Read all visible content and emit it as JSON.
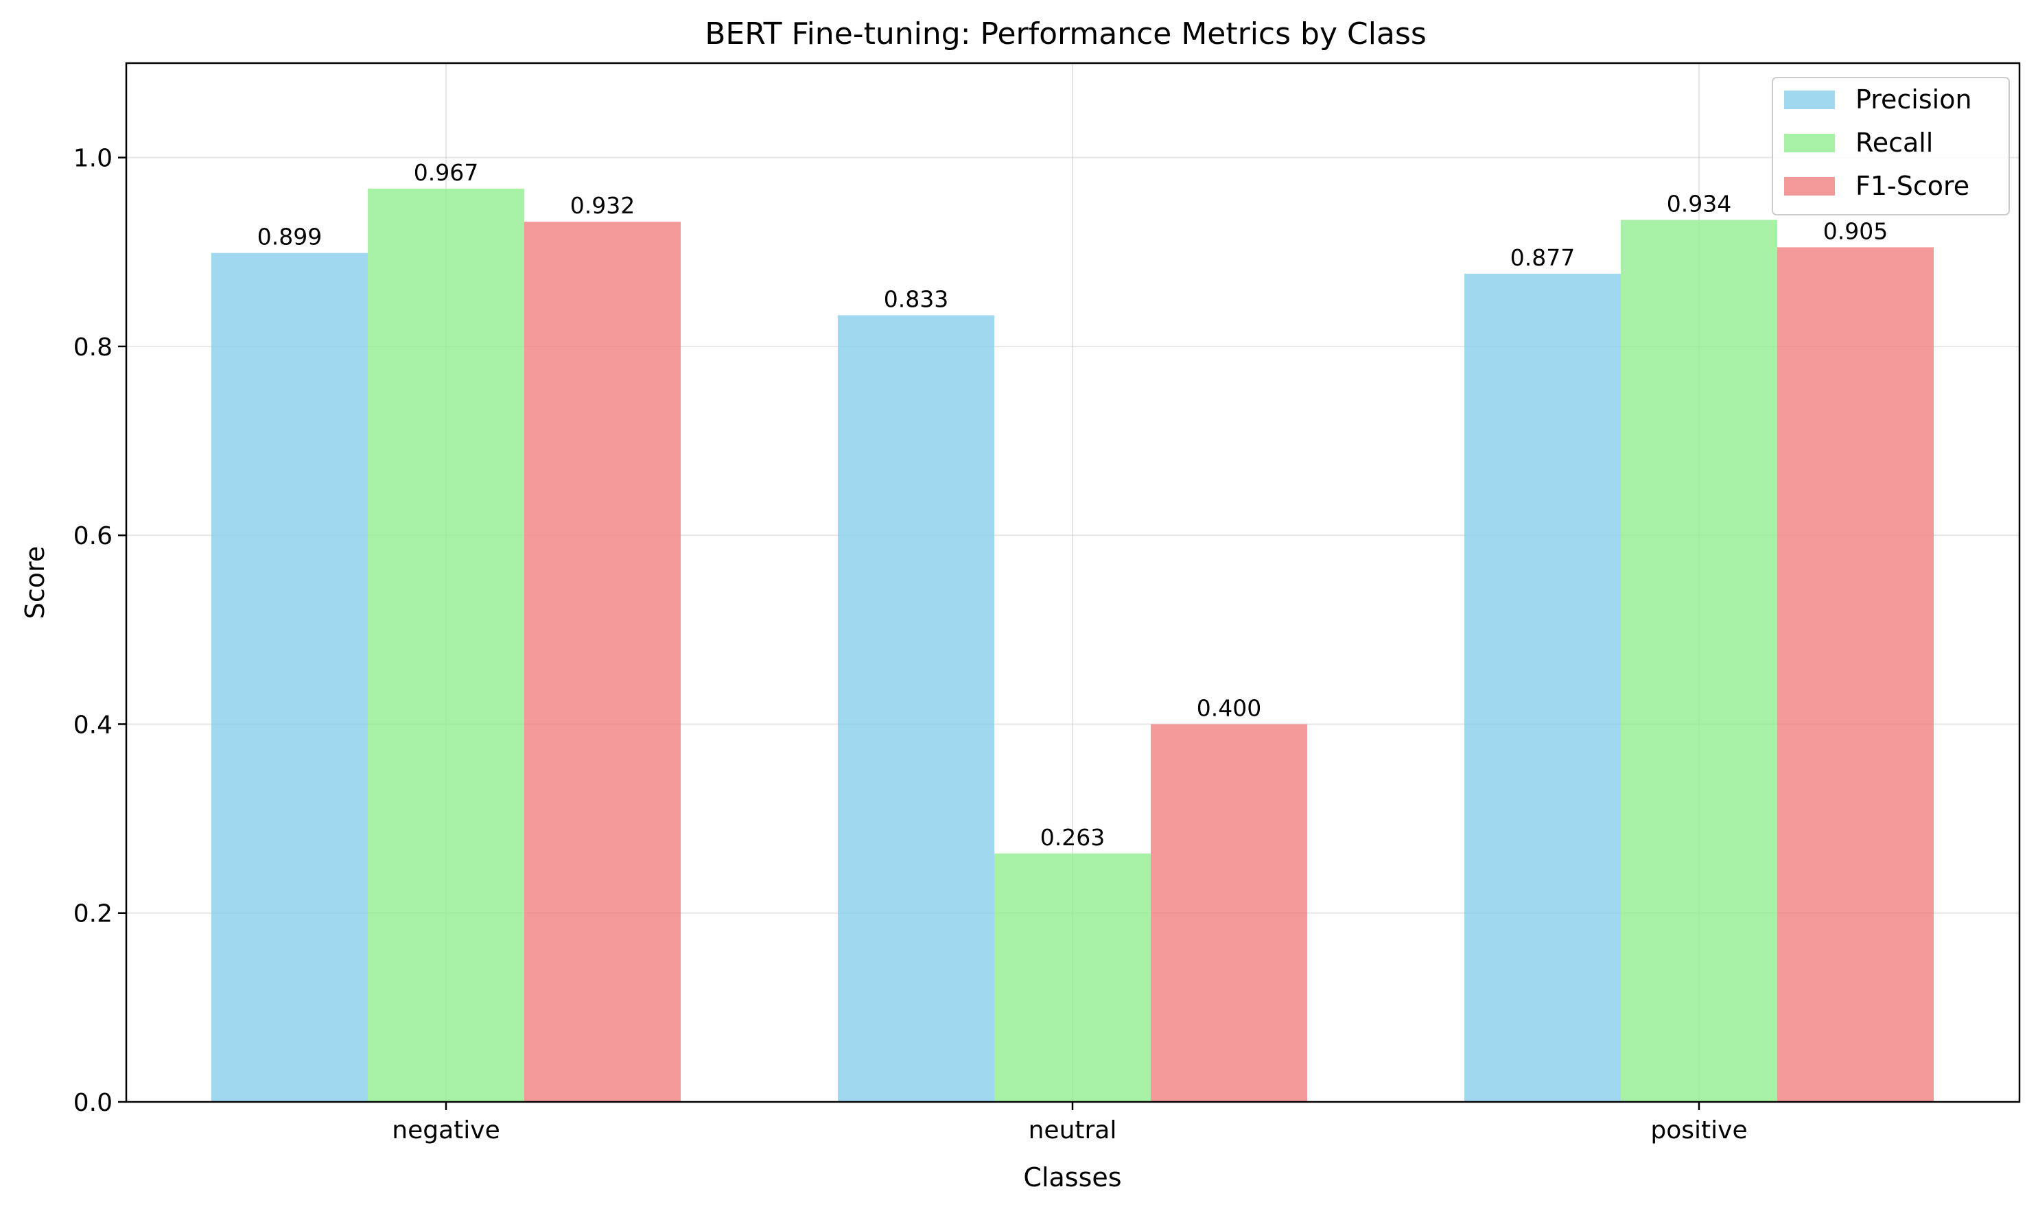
{
  "chart_data": {
    "type": "bar",
    "title": "BERT Fine-tuning: Performance Metrics by Class",
    "xlabel": "Classes",
    "ylabel": "Score",
    "categories": [
      "negative",
      "neutral",
      "positive"
    ],
    "ylim": [
      0,
      1.1
    ],
    "yticks": [
      "0.0",
      "0.2",
      "0.4",
      "0.6",
      "0.8",
      "1.0"
    ],
    "grid": true,
    "legend_position": "top-right",
    "series": [
      {
        "name": "Precision",
        "color": "#87ceeb",
        "values": [
          0.899,
          0.833,
          0.877
        ],
        "labels": [
          "0.899",
          "0.833",
          "0.877"
        ]
      },
      {
        "name": "Recall",
        "color": "#90ee90",
        "values": [
          0.967,
          0.263,
          0.934
        ],
        "labels": [
          "0.967",
          "0.263",
          "0.934"
        ]
      },
      {
        "name": "F1-Score",
        "color": "#f08080",
        "values": [
          0.932,
          0.4,
          0.905
        ],
        "labels": [
          "0.932",
          "0.400",
          "0.905"
        ]
      }
    ]
  }
}
